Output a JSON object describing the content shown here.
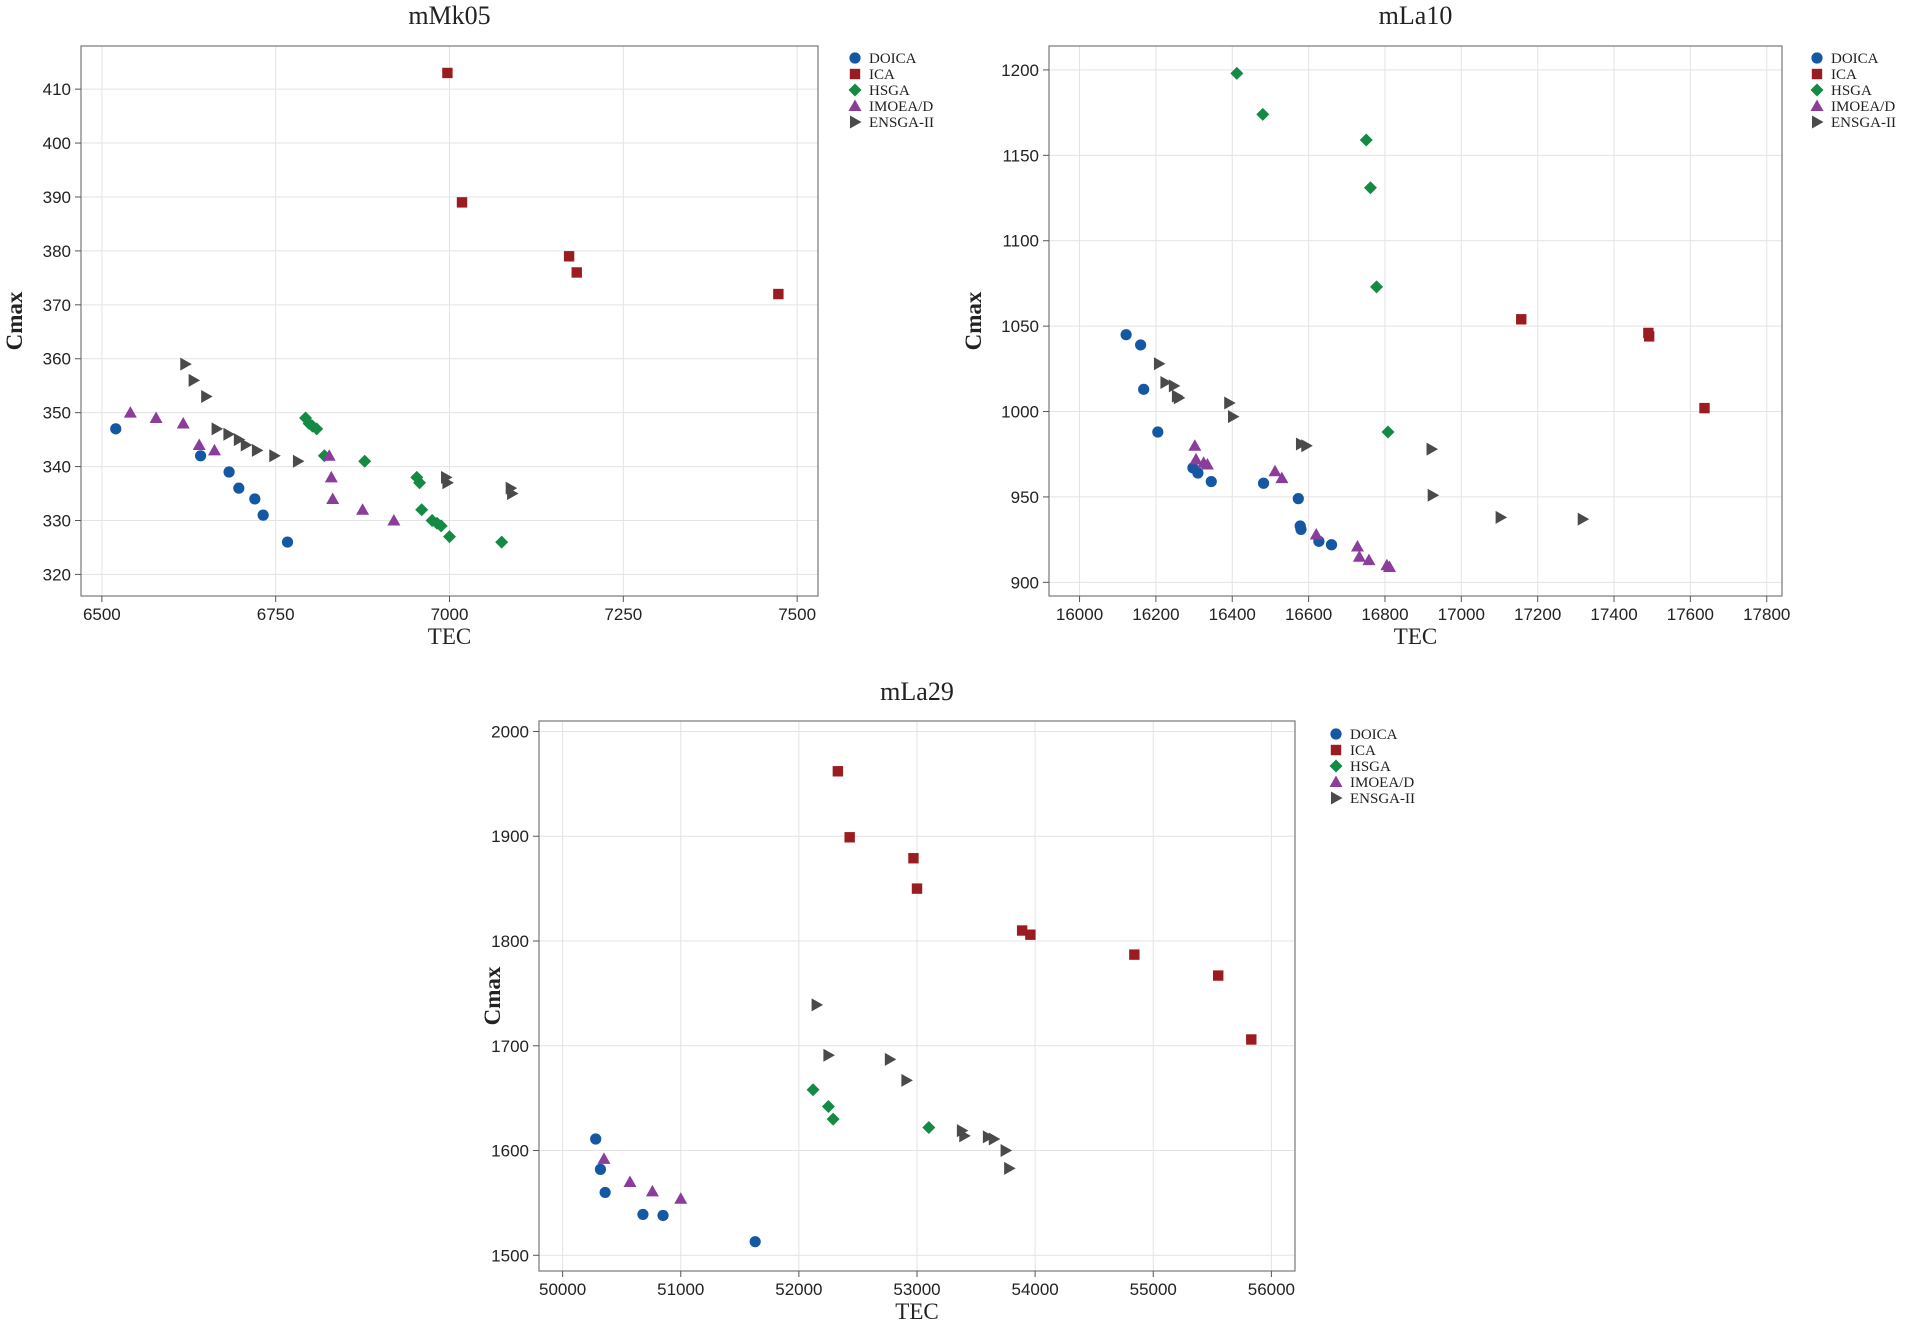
{
  "colors": {
    "DOICA": "#1457a3",
    "ICA": "#9b1c20",
    "HSGA": "#148a45",
    "IMOEA/D": "#8a3d9b",
    "ENSGA-II": "#4a4a4a"
  },
  "chart_data": [
    {
      "type": "scatter",
      "title": "mMk05",
      "xlabel": "TEC",
      "ylabel": "Cmax",
      "xlim": [
        6470,
        7530
      ],
      "ylim": [
        316,
        418
      ],
      "xticks": [
        6500,
        6750,
        7000,
        7250,
        7500
      ],
      "yticks": [
        320,
        330,
        340,
        350,
        360,
        370,
        380,
        390,
        400,
        410
      ],
      "legend": [
        "DOICA",
        "ICA",
        "HSGA",
        "IMOEA/D",
        "ENSGA-II"
      ],
      "series": [
        {
          "name": "DOICA",
          "marker": "circle",
          "points": [
            [
              6520,
              347
            ],
            [
              6642,
              342
            ],
            [
              6683,
              339
            ],
            [
              6697,
              336
            ],
            [
              6720,
              334
            ],
            [
              6732,
              331
            ],
            [
              6767,
              326
            ]
          ]
        },
        {
          "name": "ICA",
          "marker": "square",
          "points": [
            [
              6997,
              413
            ],
            [
              7018,
              389
            ],
            [
              7172,
              379
            ],
            [
              7183,
              376
            ],
            [
              7473,
              372
            ]
          ]
        },
        {
          "name": "HSGA",
          "marker": "diamond",
          "points": [
            [
              6793,
              349
            ],
            [
              6798,
              348
            ],
            [
              6803,
              347.5
            ],
            [
              6809,
              347
            ],
            [
              6820,
              342
            ],
            [
              6878,
              341
            ],
            [
              6953,
              338
            ],
            [
              6957,
              337
            ],
            [
              6960,
              332
            ],
            [
              6975,
              330
            ],
            [
              6982,
              329.5
            ],
            [
              6988,
              329
            ],
            [
              7000,
              327
            ],
            [
              7075,
              326
            ]
          ]
        },
        {
          "name": "IMOEA/D",
          "marker": "triangle-up",
          "points": [
            [
              6541,
              350
            ],
            [
              6578,
              349
            ],
            [
              6617,
              348
            ],
            [
              6640,
              344
            ],
            [
              6662,
              343
            ],
            [
              6827,
              342
            ],
            [
              6830,
              338
            ],
            [
              6832,
              334
            ],
            [
              6875,
              332
            ],
            [
              6920,
              330
            ]
          ]
        },
        {
          "name": "ENSGA-II",
          "marker": "triangle-right",
          "points": [
            [
              6620,
              359
            ],
            [
              6632,
              356
            ],
            [
              6650,
              353
            ],
            [
              6665,
              347
            ],
            [
              6682,
              346
            ],
            [
              6697,
              345
            ],
            [
              6707,
              344
            ],
            [
              6723,
              343
            ],
            [
              6748,
              342
            ],
            [
              6782,
              341
            ],
            [
              6995,
              338
            ],
            [
              6997,
              337
            ],
            [
              7088,
              336
            ],
            [
              7090,
              335
            ]
          ]
        }
      ]
    },
    {
      "type": "scatter",
      "title": "mLa10",
      "xlabel": "TEC",
      "ylabel": "Cmax",
      "xlim": [
        15920,
        17840
      ],
      "ylim": [
        892,
        1214
      ],
      "xticks": [
        16000,
        16200,
        16400,
        16600,
        16800,
        17000,
        17200,
        17400,
        17600,
        17800
      ],
      "yticks": [
        900,
        950,
        1000,
        1050,
        1100,
        1150,
        1200
      ],
      "legend": [
        "DOICA",
        "ICA",
        "HSGA",
        "IMOEA/D",
        "ENSGA-II"
      ],
      "series": [
        {
          "name": "DOICA",
          "marker": "circle",
          "points": [
            [
              16122,
              1045
            ],
            [
              16160,
              1039
            ],
            [
              16168,
              1013
            ],
            [
              16205,
              988
            ],
            [
              16297,
              967
            ],
            [
              16310,
              964
            ],
            [
              16345,
              959
            ],
            [
              16482,
              958
            ],
            [
              16573,
              949
            ],
            [
              16578,
              933
            ],
            [
              16580,
              931
            ],
            [
              16627,
              924
            ],
            [
              16660,
              922
            ]
          ]
        },
        {
          "name": "ICA",
          "marker": "square",
          "points": [
            [
              17157,
              1054
            ],
            [
              17490,
              1046
            ],
            [
              17492,
              1044
            ],
            [
              17637,
              1002
            ]
          ]
        },
        {
          "name": "HSGA",
          "marker": "diamond",
          "points": [
            [
              16412,
              1198
            ],
            [
              16480,
              1174
            ],
            [
              16751,
              1159
            ],
            [
              16762,
              1131
            ],
            [
              16778,
              1073
            ],
            [
              16808,
              988
            ]
          ]
        },
        {
          "name": "IMOEA/D",
          "marker": "triangle-up",
          "points": [
            [
              16302,
              980
            ],
            [
              16305,
              972
            ],
            [
              16325,
              970
            ],
            [
              16335,
              969
            ],
            [
              16512,
              965
            ],
            [
              16530,
              961
            ],
            [
              16620,
              928
            ],
            [
              16728,
              921
            ],
            [
              16733,
              915
            ],
            [
              16758,
              913
            ],
            [
              16805,
              910
            ],
            [
              16812,
              909
            ]
          ]
        },
        {
          "name": "ENSGA-II",
          "marker": "triangle-right",
          "points": [
            [
              16208,
              1028
            ],
            [
              16225,
              1017
            ],
            [
              16247,
              1015
            ],
            [
              16255,
              1009
            ],
            [
              16260,
              1008
            ],
            [
              16392,
              1005
            ],
            [
              16402,
              997
            ],
            [
              16580,
              981
            ],
            [
              16594,
              980
            ],
            [
              16922,
              978
            ],
            [
              16925,
              951
            ],
            [
              17103,
              938
            ],
            [
              17318,
              937
            ]
          ]
        }
      ]
    },
    {
      "type": "scatter",
      "title": "mLa29",
      "xlabel": "TEC",
      "ylabel": "Cmax",
      "xlim": [
        49800,
        56200
      ],
      "ylim": [
        1485,
        2010
      ],
      "xticks": [
        50000,
        51000,
        52000,
        53000,
        54000,
        55000,
        56000
      ],
      "yticks": [
        1500,
        1600,
        1700,
        1800,
        1900,
        2000
      ],
      "legend": [
        "DOICA",
        "ICA",
        "HSGA",
        "IMOEA/D",
        "ENSGA-II"
      ],
      "series": [
        {
          "name": "DOICA",
          "marker": "circle",
          "points": [
            [
              50280,
              1611
            ],
            [
              50320,
              1582
            ],
            [
              50360,
              1560
            ],
            [
              50680,
              1539
            ],
            [
              50850,
              1538
            ],
            [
              51630,
              1513
            ]
          ]
        },
        {
          "name": "ICA",
          "marker": "square",
          "points": [
            [
              52330,
              1962
            ],
            [
              52430,
              1899
            ],
            [
              52970,
              1879
            ],
            [
              53000,
              1850
            ],
            [
              53890,
              1810
            ],
            [
              53960,
              1806
            ],
            [
              54840,
              1787
            ],
            [
              55550,
              1767
            ],
            [
              55830,
              1706
            ]
          ]
        },
        {
          "name": "HSGA",
          "marker": "diamond",
          "points": [
            [
              52120,
              1658
            ],
            [
              52250,
              1642
            ],
            [
              52290,
              1630
            ],
            [
              53100,
              1622
            ]
          ]
        },
        {
          "name": "IMOEA/D",
          "marker": "triangle-up",
          "points": [
            [
              50350,
              1592
            ],
            [
              50570,
              1570
            ],
            [
              50760,
              1561
            ],
            [
              51000,
              1554
            ]
          ]
        },
        {
          "name": "ENSGA-II",
          "marker": "triangle-right",
          "points": [
            [
              52150,
              1739
            ],
            [
              52250,
              1691
            ],
            [
              52770,
              1687
            ],
            [
              52910,
              1667
            ],
            [
              53380,
              1619
            ],
            [
              53400,
              1614
            ],
            [
              53600,
              1613
            ],
            [
              53650,
              1611
            ],
            [
              53750,
              1600
            ],
            [
              53780,
              1583
            ]
          ]
        }
      ]
    }
  ]
}
